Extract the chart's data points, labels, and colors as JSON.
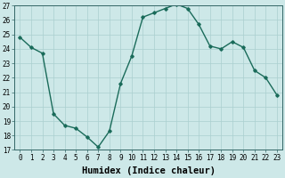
{
  "x": [
    0,
    1,
    2,
    3,
    4,
    5,
    6,
    7,
    8,
    9,
    10,
    11,
    12,
    13,
    14,
    15,
    16,
    17,
    18,
    19,
    20,
    21,
    22,
    23
  ],
  "y": [
    24.8,
    24.1,
    23.7,
    19.5,
    18.7,
    18.5,
    17.9,
    17.2,
    18.3,
    21.6,
    23.5,
    26.2,
    26.5,
    26.8,
    27.1,
    26.8,
    25.7,
    24.2,
    24.0,
    24.5,
    24.1,
    22.5,
    22.0,
    20.8
  ],
  "xlabel": "Humidex (Indice chaleur)",
  "ylim": [
    17,
    27
  ],
  "yticks": [
    17,
    18,
    19,
    20,
    21,
    22,
    23,
    24,
    25,
    26,
    27
  ],
  "xticks": [
    0,
    1,
    2,
    3,
    4,
    5,
    6,
    7,
    8,
    9,
    10,
    11,
    12,
    13,
    14,
    15,
    16,
    17,
    18,
    19,
    20,
    21,
    22,
    23
  ],
  "xtick_labels": [
    "0",
    "1",
    "2",
    "3",
    "4",
    "5",
    "6",
    "7",
    "8",
    "9",
    "10",
    "11",
    "12",
    "13",
    "14",
    "15",
    "16",
    "17",
    "18",
    "19",
    "20",
    "21",
    "22",
    "23"
  ],
  "line_color": "#1a6b5a",
  "marker": "D",
  "marker_size": 1.8,
  "line_width": 1.0,
  "bg_color": "#cde8e8",
  "grid_color": "#aacfcf",
  "font_family": "monospace",
  "xlabel_fontsize": 7.5,
  "tick_fontsize": 5.5
}
